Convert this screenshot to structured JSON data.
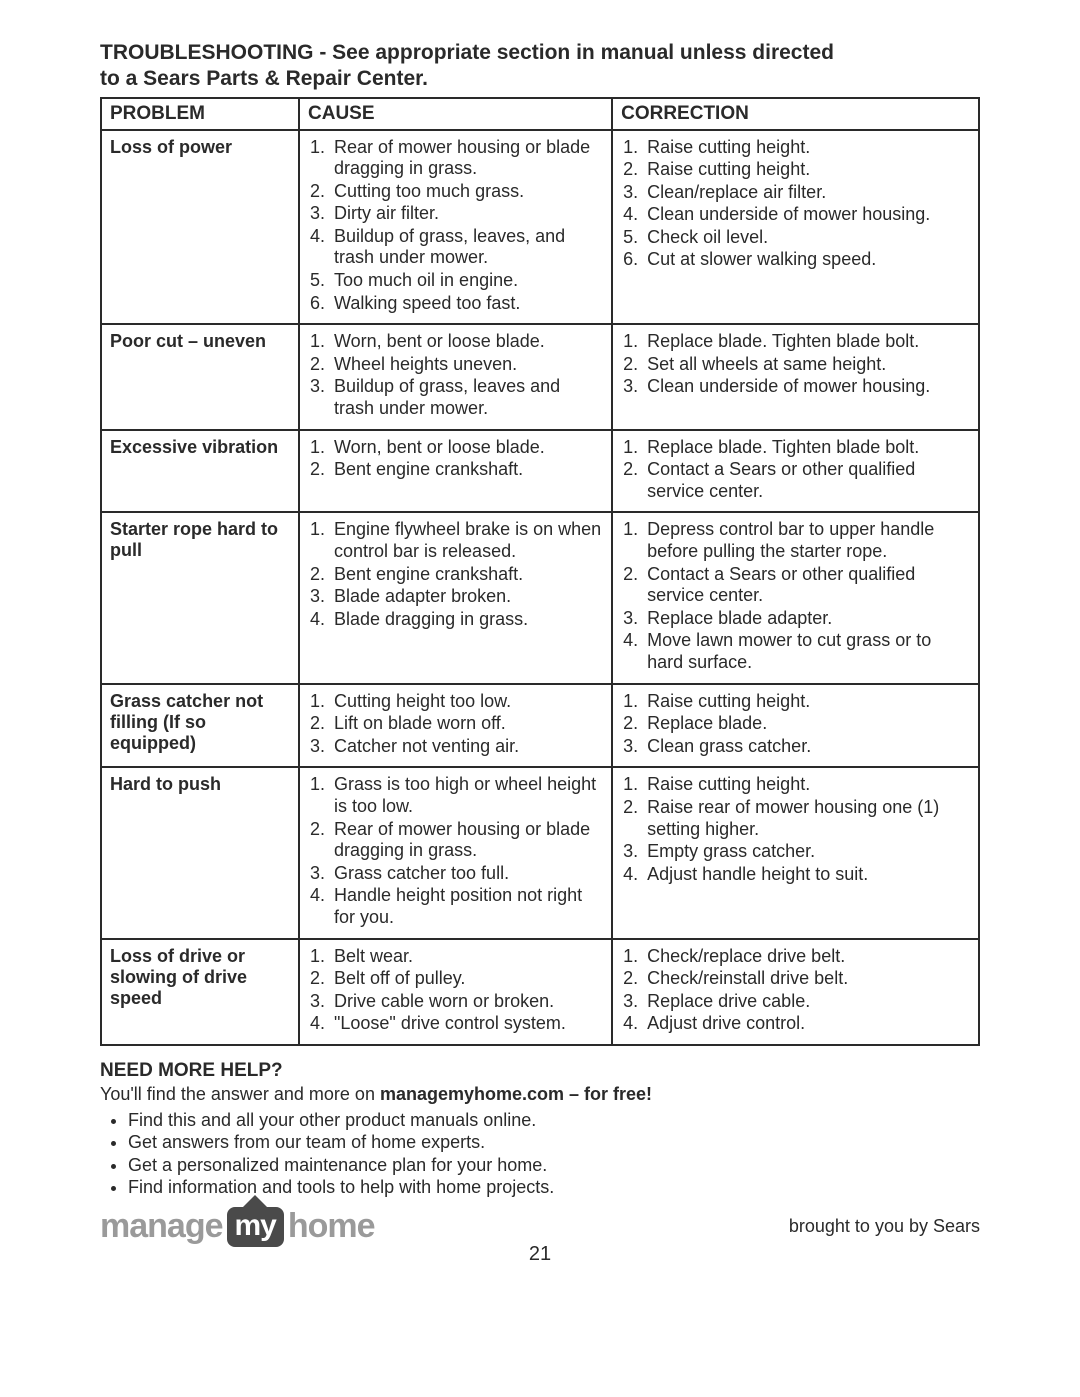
{
  "title_line1": "TROUBLESHOOTING - See appropriate section in manual unless directed",
  "title_line2": "to a Sears Parts & Repair Center.",
  "columns": {
    "problem": "PROBLEM",
    "cause": "CAUSE",
    "correction": "CORRECTION"
  },
  "rows": [
    {
      "problem": "Loss of power",
      "causes": [
        "Rear of mower housing or blade dragging in grass.",
        "Cutting too much grass.",
        "Dirty air filter.",
        "Buildup of grass, leaves, and trash under mower.",
        "Too much oil in engine.",
        "Walking speed too fast."
      ],
      "corrections": [
        "Raise cutting height.",
        "Raise cutting height.",
        "Clean/replace air filter.",
        "Clean underside of mower housing.",
        "Check oil level.",
        "Cut at slower walking speed."
      ]
    },
    {
      "problem": "Poor cut – uneven",
      "causes": [
        "Worn, bent or loose blade.",
        "Wheel heights uneven.",
        "Buildup of grass, leaves and trash under mower."
      ],
      "corrections": [
        "Replace blade. Tighten blade bolt.",
        "Set all wheels at same height.",
        "Clean underside of mower housing."
      ]
    },
    {
      "problem": "Excessive vibration",
      "causes": [
        "Worn, bent or loose blade.",
        "Bent engine crankshaft."
      ],
      "corrections": [
        "Replace blade. Tighten blade bolt.",
        "Contact a Sears or other qualified service center."
      ]
    },
    {
      "problem": "Starter rope hard to pull",
      "causes": [
        "Engine flywheel brake is on when control bar is released.",
        "Bent engine crankshaft.",
        "Blade adapter broken.",
        "Blade dragging in grass."
      ],
      "corrections": [
        "Depress control bar to upper handle before pulling the starter rope.",
        "Contact a Sears or other qualified service center.",
        "Replace blade adapter.",
        "Move lawn mower to cut grass or to hard surface."
      ]
    },
    {
      "problem": "Grass catcher not filling (If so equipped)",
      "causes": [
        "Cutting height too low.",
        "Lift on blade worn off.",
        "Catcher not venting air."
      ],
      "corrections": [
        "Raise cutting height.",
        "Replace blade.",
        "Clean grass catcher."
      ]
    },
    {
      "problem": "Hard to push",
      "causes": [
        "Grass is too high or wheel height is too low.",
        "Rear of mower housing or blade dragging in grass.",
        "Grass catcher too full.",
        "Handle height position not right for you."
      ],
      "corrections": [
        "Raise cutting height.",
        "Raise rear of mower housing one (1) setting higher.",
        "Empty grass catcher.",
        "Adjust handle height to suit."
      ]
    },
    {
      "problem": "Loss of drive or slowing of drive speed",
      "causes": [
        "Belt wear.",
        "Belt off of pulley.",
        "Drive cable worn or broken.",
        "\"Loose\" drive control system."
      ],
      "corrections": [
        "Check/replace drive belt.",
        "Check/reinstall drive belt.",
        "Replace drive cable.",
        "Adjust drive control."
      ]
    }
  ],
  "help": {
    "title": "NEED MORE HELP?",
    "intro_pre": "You'll find the answer and more on ",
    "intro_bold": "managemyhome.com – for free!",
    "items": [
      "Find this and all your other product manuals online.",
      "Get answers from our team of home experts.",
      "Get a personalized maintenance plan for your home.",
      "Find information and tools to help with home projects."
    ]
  },
  "logo": {
    "pre": "manage",
    "mid": "my",
    "post": "home"
  },
  "brought": "brought to you by Sears",
  "page_number": "21",
  "colors": {
    "text": "#2a2a2a",
    "border": "#2a2a2a",
    "logo_gray": "#9a9a9a",
    "badge_bg": "#4a4a4a",
    "background": "#ffffff"
  },
  "fontsizes": {
    "title": 21,
    "table": 18,
    "help": 18,
    "logo": 34,
    "page": 20
  }
}
